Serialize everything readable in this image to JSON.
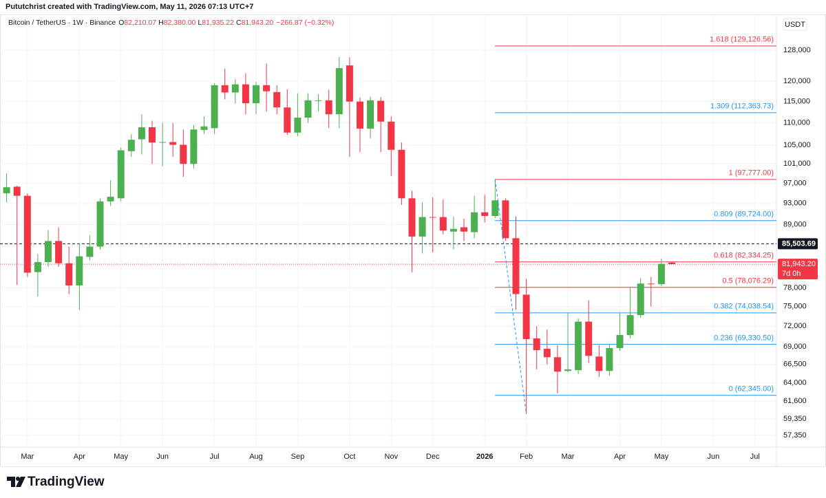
{
  "header": "Pututchrist created with TradingView.com, May 11, 2026 07:13 UTC+7",
  "brand": "TradingView",
  "chart_data": {
    "type": "candlestick",
    "symbol": "Bitcoin / TetherUS · 1W · Binance",
    "legend": [
      {
        "key": "O",
        "value": "82,210.07"
      },
      {
        "key": "H",
        "value": "82,380.00"
      },
      {
        "key": "L",
        "value": "81,935.22"
      },
      {
        "key": "C",
        "value": "81,943.20"
      }
    ],
    "change": "−266.87 (−0.32%)",
    "currency": "USDT",
    "up_color": "#4caf50",
    "down_color": "#f23645",
    "log_scale": true,
    "grid": true,
    "categories": [
      null,
      null,
      "Mar",
      null,
      null,
      null,
      null,
      "Apr",
      null,
      null,
      null,
      "May",
      null,
      null,
      null,
      "Jun",
      null,
      null,
      null,
      null,
      "Jul",
      null,
      null,
      null,
      "Aug",
      null,
      null,
      null,
      "Sep",
      null,
      null,
      null,
      null,
      "Oct",
      null,
      null,
      null,
      "Nov",
      null,
      null,
      null,
      "Dec",
      null,
      null,
      null,
      null,
      "2026",
      null,
      null,
      null,
      "Feb",
      null,
      null,
      null,
      "Mar",
      null,
      null,
      null,
      null,
      "Apr",
      null,
      null,
      null,
      "May",
      null,
      null,
      null,
      null,
      "Jun",
      null,
      null,
      null,
      "Jul",
      null,
      null
    ],
    "open": [
      95000,
      96300,
      94500,
      80600,
      82300,
      86000,
      82100,
      78400,
      83200,
      85000,
      93400,
      94000,
      103700,
      106300,
      109000,
      105600,
      105700,
      105100,
      101000,
      108400,
      108800,
      119000,
      117200,
      119200,
      114600,
      119000,
      117300,
      113600,
      107800,
      111200,
      115300,
      115300,
      112000,
      124000,
      115000,
      108700,
      115200,
      110300,
      104000,
      94000,
      86800,
      90400,
      90400,
      87700,
      88500,
      87600,
      91300,
      90600,
      93600,
      86500,
      76900,
      70200,
      68700,
      67500,
      65600,
      65700,
      72700,
      67600,
      65600,
      68800,
      70700,
      73700,
      78700,
      78600,
      82210.07,
      null,
      null,
      null,
      null,
      null,
      null,
      null,
      null,
      null,
      null
    ],
    "high": [
      99000,
      96500,
      95000,
      83700,
      88000,
      88500,
      85000,
      85600,
      87000,
      94000,
      97600,
      104500,
      107500,
      112000,
      110500,
      110000,
      110000,
      108500,
      109500,
      111500,
      119500,
      123200,
      120500,
      122000,
      119800,
      124500,
      119000,
      118000,
      117000,
      117000,
      116800,
      117900,
      126200,
      126100,
      116000,
      116200,
      116100,
      111500,
      105600,
      95500,
      93200,
      94200,
      93800,
      90500,
      90100,
      94500,
      94700,
      97777,
      94000,
      90500,
      79500,
      72000,
      71500,
      69200,
      74000,
      73200,
      76000,
      69200,
      69300,
      74000,
      78000,
      79600,
      79800,
      82900,
      82380,
      null,
      null,
      null,
      null,
      null,
      null,
      null,
      null,
      null,
      null
    ],
    "low": [
      93200,
      78500,
      79800,
      76600,
      81500,
      81500,
      77000,
      74500,
      82600,
      84500,
      92500,
      93400,
      102500,
      103000,
      101000,
      100500,
      102500,
      98300,
      100000,
      107500,
      107500,
      115500,
      114500,
      112000,
      112000,
      112600,
      112000,
      107300,
      107000,
      110000,
      112700,
      108800,
      108800,
      102500,
      103500,
      106500,
      103500,
      98500,
      92700,
      80600,
      83800,
      84000,
      87200,
      84500,
      86000,
      86500,
      89400,
      90200,
      86000,
      74500,
      60000,
      65800,
      66500,
      62600,
      65400,
      65200,
      66700,
      64800,
      65000,
      68400,
      70200,
      73300,
      75000,
      78300,
      81935.22,
      null,
      null,
      null,
      null,
      null,
      null,
      null,
      null,
      null,
      null
    ],
    "close": [
      96200,
      94500,
      80500,
      82300,
      86000,
      82100,
      78400,
      83300,
      85000,
      93400,
      94300,
      103900,
      106200,
      109000,
      105600,
      105700,
      105100,
      101000,
      108500,
      109200,
      119000,
      117200,
      119200,
      114600,
      119000,
      117500,
      113600,
      107800,
      111200,
      115300,
      115300,
      112000,
      123300,
      115000,
      108700,
      115300,
      110300,
      104000,
      94000,
      86800,
      90400,
      90300,
      87900,
      88200,
      87700,
      91300,
      90600,
      93600,
      86500,
      77000,
      70100,
      68500,
      67500,
      65500,
      65800,
      72700,
      67700,
      65600,
      68800,
      70700,
      73700,
      78700,
      78600,
      82000,
      81943.2,
      null,
      null,
      null,
      null,
      null,
      null,
      null,
      null,
      null,
      null
    ],
    "ylim": [
      55970,
      137700
    ],
    "yticks": [
      {
        "value": 57350,
        "label": "57,350"
      },
      {
        "value": 59350,
        "label": "59,350"
      },
      {
        "value": 61600,
        "label": "61,600"
      },
      {
        "value": 64000,
        "label": "64,000"
      },
      {
        "value": 66500,
        "label": "66,500"
      },
      {
        "value": 69000,
        "label": "69,000"
      },
      {
        "value": 72000,
        "label": "72,000"
      },
      {
        "value": 75000,
        "label": "75,000"
      },
      {
        "value": 78000,
        "label": "78,000"
      },
      {
        "value": 89000,
        "label": "89,000"
      },
      {
        "value": 93000,
        "label": "93,000"
      },
      {
        "value": 97000,
        "label": "97,000"
      },
      {
        "value": 101000,
        "label": "101,000"
      },
      {
        "value": 105000,
        "label": "105,000"
      },
      {
        "value": 110000,
        "label": "110,000"
      },
      {
        "value": 115000,
        "label": "115,000"
      },
      {
        "value": 120000,
        "label": "120,000"
      },
      {
        "value": 128000,
        "label": "128,000"
      }
    ],
    "fib_levels": [
      {
        "value": 129126.56,
        "label": "1.618 (129,126.56)",
        "color": "#f23645"
      },
      {
        "value": 112363.73,
        "label": "1.309 (112,363.73)",
        "color": "#2196f3"
      },
      {
        "value": 97777.0,
        "label": "1 (97,777.00)",
        "color": "#f23645"
      },
      {
        "value": 89724.0,
        "label": "0.809 (89,724.00)",
        "color": "#2196f3"
      },
      {
        "value": 82334.25,
        "label": "0.618 (82,334.25)",
        "color": "#f23645"
      },
      {
        "value": 78076.29,
        "label": "0.5 (78,076.29)",
        "color": "#f23645"
      },
      {
        "value": 74038.54,
        "label": "0.382 (74,038.54)",
        "color": "#2196f3"
      },
      {
        "value": 69330.5,
        "label": "0.236 (69,330.50)",
        "color": "#2196f3"
      },
      {
        "value": 62345.0,
        "label": "0 (62,345.00)",
        "color": "#2196f3"
      }
    ],
    "price_line": {
      "value": 85503.69,
      "label": "85,503.69"
    },
    "last_price": {
      "value": 81943.2,
      "label": "81,943.20",
      "countdown": "7d 0h"
    }
  }
}
